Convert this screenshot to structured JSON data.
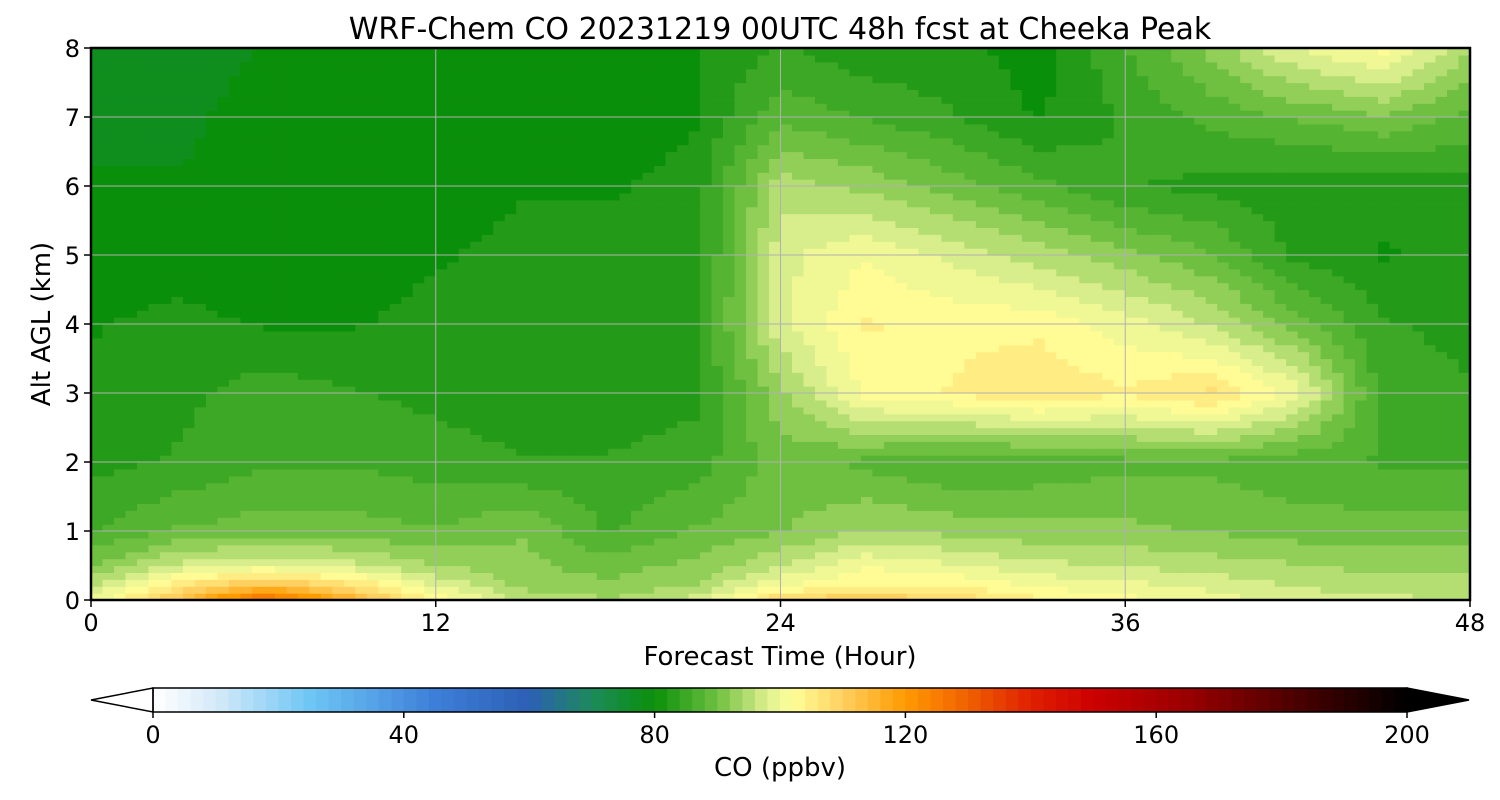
{
  "chart_data": {
    "type": "heatmap",
    "title": "WRF-Chem CO  20231219 00UTC 48h fcst at Cheeka Peak",
    "xlabel": "Forecast Time (Hour)",
    "ylabel": "Alt AGL (km)",
    "xlim": [
      0,
      48
    ],
    "ylim": [
      0,
      8
    ],
    "x_ticks": [
      "0",
      "12",
      "24",
      "36",
      "48"
    ],
    "y_ticks": [
      "0",
      "1",
      "2",
      "3",
      "4",
      "5",
      "6",
      "7",
      "8"
    ],
    "grid": true,
    "colorbar": {
      "label": "CO  (ppbv)",
      "ticks": [
        "0",
        "40",
        "80",
        "120",
        "160",
        "200"
      ],
      "range": [
        0,
        200
      ],
      "extend": "both",
      "colors": {
        "0": "#ffffff",
        "10": "#d6eaf8",
        "25": "#6ec6f5",
        "45": "#3d7fd8",
        "60": "#2d5fb5",
        "70": "#1c8a5a",
        "80": "#0a8f0a",
        "90": "#6fc040",
        "98": "#dff090",
        "102": "#ffff99",
        "110": "#ffd060",
        "120": "#ff9a00",
        "130": "#f06000",
        "140": "#e02000",
        "150": "#cc0000",
        "165": "#990000",
        "180": "#550000",
        "200": "#000000"
      }
    },
    "x_hours": [
      0,
      3,
      6,
      9,
      12,
      15,
      18,
      21,
      24,
      27,
      30,
      33,
      36,
      39,
      42,
      45,
      48
    ],
    "z_levels_km": [
      0,
      0.2,
      0.5,
      1,
      2,
      3,
      4,
      5,
      6,
      7,
      8
    ],
    "values_ppbv": [
      [
        99,
        112,
        130,
        116,
        103,
        96,
        94,
        97,
        109,
        112,
        108,
        104,
        102,
        100,
        98,
        97,
        96
      ],
      [
        96,
        106,
        114,
        108,
        99,
        93,
        92,
        94,
        101,
        104,
        104,
        101,
        100,
        98,
        96,
        95,
        95
      ],
      [
        91,
        97,
        99,
        97,
        94,
        92,
        90,
        92,
        96,
        101,
        99,
        97,
        96,
        95,
        94,
        93,
        93
      ],
      [
        86,
        89,
        90,
        90,
        89,
        91,
        86,
        89,
        91,
        94,
        93,
        92,
        92,
        91,
        90,
        90,
        90
      ],
      [
        83,
        84,
        86,
        86,
        85,
        84,
        84,
        85,
        90,
        88,
        86,
        87,
        88,
        88,
        87,
        86,
        86
      ],
      [
        82,
        83,
        85,
        84,
        83,
        82,
        82,
        83,
        93,
        102,
        104,
        106,
        104,
        107,
        100,
        85,
        84
      ],
      [
        81,
        82,
        81,
        81,
        82,
        82,
        82,
        83,
        98,
        104,
        103,
        103,
        100,
        96,
        90,
        84,
        83
      ],
      [
        80,
        80,
        80,
        80,
        81,
        82,
        82,
        82,
        98,
        101,
        98,
        95,
        92,
        89,
        83,
        81,
        82
      ],
      [
        79,
        79,
        80,
        80,
        80,
        81,
        81,
        82,
        95,
        93,
        90,
        87,
        84,
        83,
        82,
        82,
        83
      ],
      [
        78,
        78,
        80,
        80,
        80,
        80,
        80,
        81,
        88,
        86,
        84,
        81,
        84,
        87,
        89,
        91,
        88
      ],
      [
        77,
        77,
        79,
        80,
        80,
        80,
        80,
        81,
        84,
        82,
        82,
        80,
        86,
        92,
        99,
        102,
        94
      ]
    ]
  }
}
